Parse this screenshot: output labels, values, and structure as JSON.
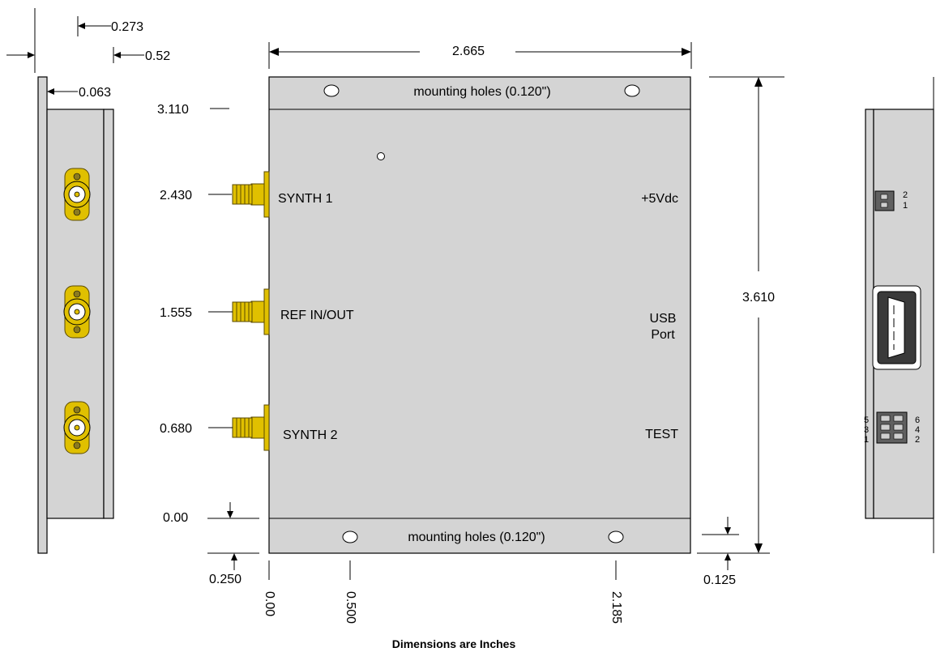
{
  "dimensions": {
    "side_273": "0.273",
    "side_52": "0.52",
    "side_063": "0.063",
    "width": "2.665",
    "height": "3.610",
    "y_3110": "3.110",
    "y_2430": "2.430",
    "y_1555": "1.555",
    "y_0680": "0.680",
    "y_000": "0.00",
    "y_0250": "0.250",
    "x_000": "0.00",
    "x_0500": "0.500",
    "x_2185": "2.185",
    "r_0125": "0.125"
  },
  "labels": {
    "mounting_top": "mounting holes (0.120\")",
    "mounting_bottom": "mounting holes (0.120\")",
    "synth1": "SYNTH 1",
    "ref": "REF IN/OUT",
    "synth2": "SYNTH 2",
    "power": "+5Vdc",
    "usb1": "USB",
    "usb2": "Port",
    "test": "TEST"
  },
  "pins": {
    "power": [
      "2",
      "1"
    ],
    "test_left": [
      "5",
      "3",
      "1"
    ],
    "test_right": [
      "6",
      "4",
      "2"
    ]
  },
  "footer": "Dimensions are Inches"
}
